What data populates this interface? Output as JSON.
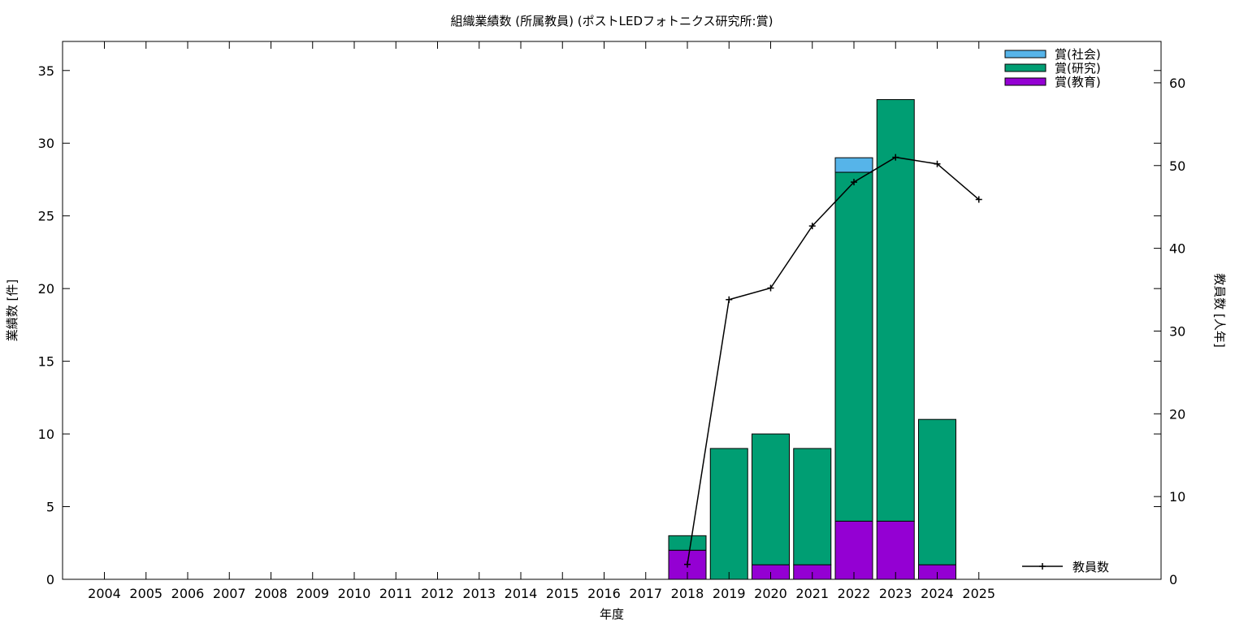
{
  "chart_data": {
    "type": "bar",
    "stacked": true,
    "title": "組織業績数 (所属教員) (ポストLEDフォトニクス研究所:賞)",
    "xlabel": "年度",
    "ylabel": "業績数 [件]",
    "y2label": "教員数 [人年]",
    "categories": [
      "2004",
      "2005",
      "2006",
      "2007",
      "2008",
      "2009",
      "2010",
      "2011",
      "2012",
      "2013",
      "2014",
      "2015",
      "2016",
      "2017",
      "2018",
      "2019",
      "2020",
      "2021",
      "2022",
      "2023",
      "2024",
      "2025"
    ],
    "ylim": [
      0,
      37
    ],
    "yticks": [
      0,
      5,
      10,
      15,
      20,
      25,
      30,
      35
    ],
    "y2lim": [
      0,
      65
    ],
    "y2ticks": [
      0,
      10,
      20,
      30,
      40,
      50,
      60
    ],
    "grid": false,
    "legend_position": "top-right",
    "series": [
      {
        "name": "賞(教育)",
        "color": "#9400d3",
        "values": [
          0,
          0,
          0,
          0,
          0,
          0,
          0,
          0,
          0,
          0,
          0,
          0,
          0,
          0,
          2,
          0,
          1,
          1,
          4,
          4,
          1,
          0
        ]
      },
      {
        "name": "賞(研究)",
        "color": "#009e73",
        "values": [
          0,
          0,
          0,
          0,
          0,
          0,
          0,
          0,
          0,
          0,
          0,
          0,
          0,
          0,
          1,
          9,
          9,
          8,
          24,
          29,
          10,
          0
        ]
      },
      {
        "name": "賞(社会)",
        "color": "#56b4e9",
        "values": [
          0,
          0,
          0,
          0,
          0,
          0,
          0,
          0,
          0,
          0,
          0,
          0,
          0,
          0,
          0,
          0,
          0,
          0,
          1,
          0,
          0,
          0
        ]
      }
    ],
    "line_series": {
      "name": "教員数",
      "axis": "y2",
      "color": "#000000",
      "x": [
        "2018",
        "2019",
        "2020",
        "2021",
        "2022",
        "2023",
        "2024",
        "2025"
      ],
      "values": [
        1.8,
        33.8,
        35.2,
        42.7,
        48.0,
        51.0,
        50.2,
        45.9
      ]
    },
    "legend_order": [
      "賞(社会)",
      "賞(研究)",
      "賞(教育)"
    ]
  }
}
